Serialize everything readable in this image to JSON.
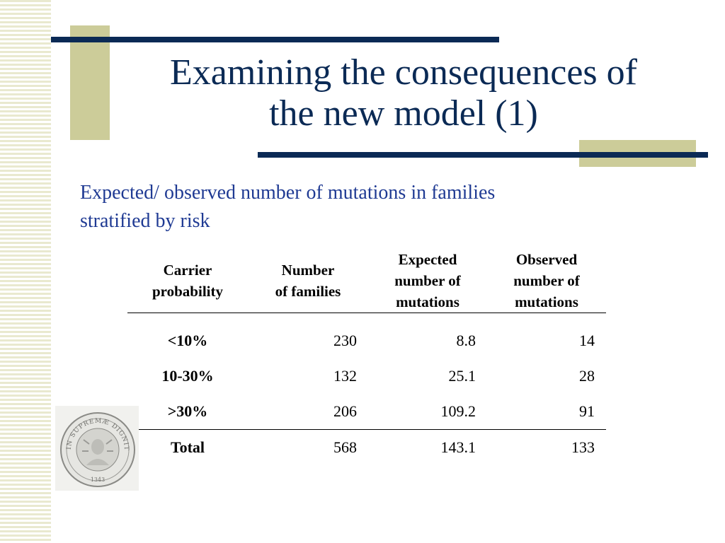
{
  "slide": {
    "title_line1": "Examining the consequences of",
    "title_line2": "the new model (1)",
    "subtitle_line1": "Expected/ observed number of mutations in families",
    "subtitle_line2": "stratified by risk"
  },
  "table": {
    "headers": [
      [
        "Carrier",
        "probability"
      ],
      [
        "Number",
        "of families"
      ],
      [
        "Expected",
        "number of",
        "mutations"
      ],
      [
        "Observed",
        "number of",
        "mutations"
      ]
    ],
    "rows": [
      {
        "label": "<10%",
        "families": "230",
        "expected": "8.8",
        "observed": "14"
      },
      {
        "label": "10-30%",
        "families": "132",
        "expected": "25.1",
        "observed": "28"
      },
      {
        "label": ">30%",
        "families": "206",
        "expected": "109.2",
        "observed": "91"
      }
    ],
    "total": {
      "label": "Total",
      "families": "568",
      "expected": "143.1",
      "observed": "133"
    }
  },
  "seal": {
    "text": "IN SUPREMÆ DIGNITATIS",
    "year": "1343"
  },
  "colors": {
    "navy": "#0b2a55",
    "title_blue": "#1f3a93",
    "olive_accent": "#cccc99",
    "stripe": "#e9e9cf"
  }
}
